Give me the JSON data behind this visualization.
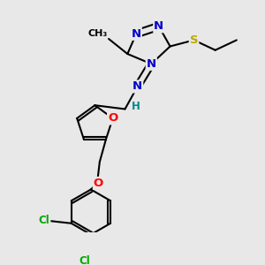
{
  "background_color": "#e8e8e8",
  "bond_color": "#000000",
  "bond_width": 1.5,
  "atom_colors": {
    "N": "#0000cc",
    "O": "#ff0000",
    "S": "#bbaa00",
    "Cl": "#00aa00",
    "H": "#008888",
    "C": "#000000"
  },
  "font_size": 8.5
}
